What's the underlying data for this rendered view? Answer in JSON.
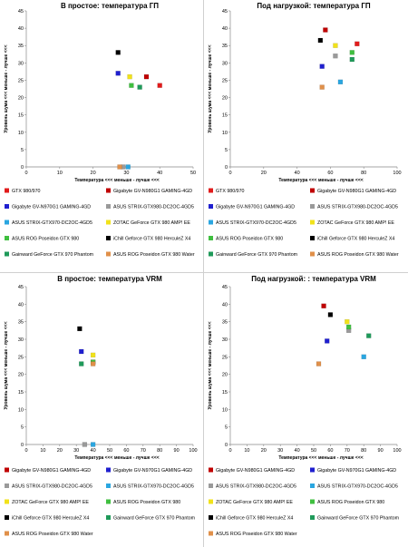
{
  "colors": {
    "GTX 980/970": "#e11b1b",
    "Gigabyte GV-N980G1 GAMING-4GD": "#c00000",
    "Gigabyte GV-N970G1 GAMING-4GD": "#1f1fcf",
    "ASUS STRIX-GTX980-DC2OC-4GD5": "#9a9a9a",
    "ASUS STRIX-GTX970-DC2OC-4GD5": "#2aa6e0",
    "ZOTAC GeForce GTX 980 AMP! EE": "#f1e21a",
    "ASUS ROG Poseidon GTX 980": "#3fbf3f",
    "iChill Geforce GTX 980 HerculeZ X4": "#000000",
    "Gainward GeForce GTX 970 Phantom": "#1f9a5a",
    "ASUS ROG Poseidon GTX 980 Water": "#e0904a"
  },
  "chart_data": [
    {
      "type": "scatter",
      "title": "В простое: температура ГП",
      "xlabel": "Температура <<< меньше - лучше <<<",
      "ylabel": "Уровень шума <<< меньше - лучше <<<",
      "xlim": [
        0,
        50
      ],
      "ylim": [
        0,
        45
      ],
      "xticks": [
        "0",
        "10",
        "20",
        "30",
        "40",
        "50"
      ],
      "yticks": [
        "0",
        "5",
        "10",
        "15",
        "20",
        "25",
        "30",
        "35",
        "40",
        "45"
      ],
      "legend_position": "bottom",
      "legend": [
        "GTX 980/970",
        "Gigabyte GV-N980G1 GAMING-4GD",
        "Gigabyte GV-N970G1 GAMING-4GD",
        "ASUS STRIX-GTX980-DC2OC-4GD5",
        "ASUS STRIX-GTX970-DC2OC-4GD5",
        "ZOTAC GeForce GTX 980 AMP! EE",
        "ASUS ROG Poseidon GTX 980",
        "iChill Geforce GTX 980 HerculeZ X4",
        "Gainward GeForce GTX 970 Phantom",
        "ASUS ROG Poseidon GTX 980 Water"
      ],
      "points": [
        {
          "series": "Gigabyte GV-N980G1 GAMING-4GD",
          "x": 36,
          "y": 26
        },
        {
          "series": "GTX 980/970",
          "x": 40,
          "y": 23.5
        },
        {
          "series": "Gigabyte GV-N970G1 GAMING-4GD",
          "x": 27.5,
          "y": 27
        },
        {
          "series": "ASUS STRIX-GTX980-DC2OC-4GD5",
          "x": 29,
          "y": 0
        },
        {
          "series": "ASUS STRIX-GTX970-DC2OC-4GD5",
          "x": 30.5,
          "y": 0
        },
        {
          "series": "ZOTAC GeForce GTX 980 AMP! EE",
          "x": 31,
          "y": 26
        },
        {
          "series": "ASUS ROG Poseidon GTX 980",
          "x": 31.5,
          "y": 23.5
        },
        {
          "series": "iChill Geforce GTX 980 HerculeZ X4",
          "x": 27.5,
          "y": 33
        },
        {
          "series": "Gainward GeForce GTX 970 Phantom",
          "x": 34,
          "y": 23
        },
        {
          "series": "ASUS ROG Poseidon GTX 980 Water",
          "x": 28,
          "y": 0
        }
      ]
    },
    {
      "type": "scatter",
      "title": "Под нагрузкой: температура ГП",
      "xlabel": "Температура <<< меньше - лучше <<<",
      "ylabel": "Уровень шума <<< меньше - лучше <<<",
      "xlim": [
        0,
        100
      ],
      "ylim": [
        0,
        45
      ],
      "xticks": [
        "0",
        "20",
        "40",
        "60",
        "80",
        "100"
      ],
      "yticks": [
        "0",
        "5",
        "10",
        "15",
        "20",
        "25",
        "30",
        "35",
        "40",
        "45"
      ],
      "legend_position": "bottom",
      "legend": [
        "GTX 980/970",
        "Gigabyte GV-N980G1 GAMING-4GD",
        "Gigabyte GV-N970G1 GAMING-4GD",
        "ASUS STRIX-GTX980-DC2OC-4GD5",
        "ASUS STRIX-GTX970-DC2OC-4GD5",
        "ZOTAC GeForce GTX 980 AMP! EE",
        "ASUS ROG Poseidon GTX 980",
        "iChill Geforce GTX 980 HerculeZ X4",
        "Gainward GeForce GTX 970 Phantom",
        "ASUS ROG Poseidon GTX 980 Water"
      ],
      "points": [
        {
          "series": "Gigabyte GV-N980G1 GAMING-4GD",
          "x": 57,
          "y": 39.5
        },
        {
          "series": "GTX 980/970",
          "x": 76,
          "y": 35.5
        },
        {
          "series": "Gigabyte GV-N970G1 GAMING-4GD",
          "x": 55,
          "y": 29
        },
        {
          "series": "ASUS STRIX-GTX980-DC2OC-4GD5",
          "x": 63,
          "y": 32
        },
        {
          "series": "ASUS STRIX-GTX970-DC2OC-4GD5",
          "x": 66,
          "y": 24.5
        },
        {
          "series": "ZOTAC GeForce GTX 980 AMP! EE",
          "x": 63,
          "y": 35
        },
        {
          "series": "ASUS ROG Poseidon GTX 980",
          "x": 73,
          "y": 33
        },
        {
          "series": "iChill Geforce GTX 980 HerculeZ X4",
          "x": 54,
          "y": 36.5
        },
        {
          "series": "Gainward GeForce GTX 970 Phantom",
          "x": 73,
          "y": 31
        },
        {
          "series": "ASUS ROG Poseidon GTX 980 Water",
          "x": 55,
          "y": 23
        }
      ]
    },
    {
      "type": "scatter",
      "title": "В простое: температура VRM",
      "xlabel": "Температура <<< меньше - лучше <<<",
      "ylabel": "Уровень шума <<< меньше - лучше <<<",
      "xlim": [
        0,
        100
      ],
      "ylim": [
        0,
        45
      ],
      "xticks": [
        "0",
        "10",
        "20",
        "30",
        "40",
        "50",
        "60",
        "70",
        "80",
        "90",
        "100"
      ],
      "yticks": [
        "0",
        "5",
        "10",
        "15",
        "20",
        "25",
        "30",
        "35",
        "40",
        "45"
      ],
      "legend_position": "bottom",
      "legend": [
        "Gigabyte GV-N980G1 GAMING-4GD",
        "Gigabyte GV-N970G1 GAMING-4GD",
        "ASUS STRIX-GTX980-DC2OC-4GD5",
        "ASUS STRIX-GTX970-DC2OC-4GD5",
        "ZOTAC GeForce GTX 980 AMP! EE",
        "ASUS ROG Poseidon GTX 980",
        "iChill Geforce GTX 980 HerculeZ X4",
        "Gainward GeForce GTX 970 Phantom",
        "ASUS ROG Poseidon GTX 980 Water"
      ],
      "points": [
        {
          "series": "Gigabyte GV-N980G1 GAMING-4GD",
          "x": 40,
          "y": 23.5
        },
        {
          "series": "Gigabyte GV-N970G1 GAMING-4GD",
          "x": 33,
          "y": 26.5
        },
        {
          "series": "ASUS STRIX-GTX980-DC2OC-4GD5",
          "x": 35,
          "y": 0
        },
        {
          "series": "ASUS STRIX-GTX970-DC2OC-4GD5",
          "x": 40,
          "y": 0
        },
        {
          "series": "ZOTAC GeForce GTX 980 AMP! EE",
          "x": 40,
          "y": 25.5
        },
        {
          "series": "ASUS ROG Poseidon GTX 980",
          "x": 40,
          "y": 23.5
        },
        {
          "series": "iChill Geforce GTX 980 HerculeZ X4",
          "x": 32,
          "y": 33
        },
        {
          "series": "Gainward GeForce GTX 970 Phantom",
          "x": 33,
          "y": 23
        },
        {
          "series": "ASUS ROG Poseidon GTX 980 Water",
          "x": 40,
          "y": 23
        }
      ]
    },
    {
      "type": "scatter",
      "title": "Под нагрузкой: : температура VRM",
      "xlabel": "Температура <<< меньше - лучше <<<",
      "ylabel": "Уровень шума <<< меньше - лучше <<<",
      "xlim": [
        0,
        100
      ],
      "ylim": [
        0,
        45
      ],
      "xticks": [
        "0",
        "10",
        "20",
        "30",
        "40",
        "50",
        "60",
        "70",
        "80",
        "90",
        "100"
      ],
      "yticks": [
        "0",
        "5",
        "10",
        "15",
        "20",
        "25",
        "30",
        "35",
        "40",
        "45"
      ],
      "legend_position": "bottom",
      "legend": [
        "Gigabyte GV-N980G1 GAMING-4GD",
        "Gigabyte GV-N970G1 GAMING-4GD",
        "ASUS STRIX-GTX980-DC2OC-4GD5",
        "ASUS STRIX-GTX970-DC2OC-4GD5",
        "ZOTAC GeForce GTX 980 AMP! EE",
        "ASUS ROG Poseidon GTX 980",
        "iChill Geforce GTX 980 HerculeZ X4",
        "Gainward GeForce GTX 970 Phantom",
        "ASUS ROG Poseidon GTX 980 Water"
      ],
      "points": [
        {
          "series": "Gigabyte GV-N980G1 GAMING-4GD",
          "x": 56,
          "y": 39.5
        },
        {
          "series": "Gigabyte GV-N970G1 GAMING-4GD",
          "x": 58,
          "y": 29.5
        },
        {
          "series": "ASUS STRIX-GTX980-DC2OC-4GD5",
          "x": 71,
          "y": 32.5
        },
        {
          "series": "ASUS STRIX-GTX970-DC2OC-4GD5",
          "x": 80,
          "y": 25
        },
        {
          "series": "ZOTAC GeForce GTX 980 AMP! EE",
          "x": 70,
          "y": 35
        },
        {
          "series": "ASUS ROG Poseidon GTX 980",
          "x": 71,
          "y": 33.5
        },
        {
          "series": "iChill Geforce GTX 980 HerculeZ X4",
          "x": 60,
          "y": 37
        },
        {
          "series": "Gainward GeForce GTX 970 Phantom",
          "x": 83,
          "y": 31
        },
        {
          "series": "ASUS ROG Poseidon GTX 980 Water",
          "x": 53,
          "y": 23
        }
      ]
    }
  ]
}
